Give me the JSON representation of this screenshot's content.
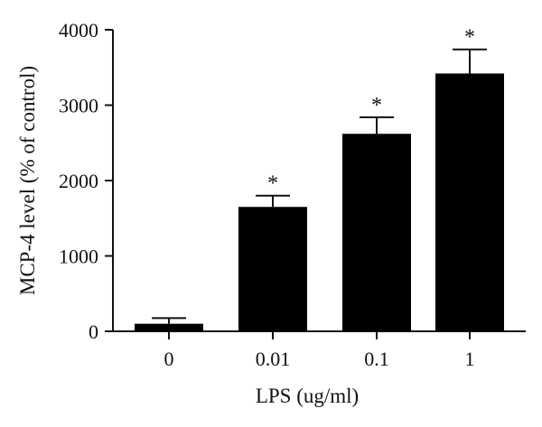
{
  "chart_data": {
    "type": "bar",
    "xlabel": "LPS (ug/ml)",
    "ylabel": "MCP-4 level (% of control)",
    "categories": [
      "0",
      "0.01",
      "0.1",
      "1"
    ],
    "values": [
      100,
      1650,
      2620,
      3420
    ],
    "error_plus": [
      75,
      150,
      220,
      320
    ],
    "significance": [
      "",
      "*",
      "*",
      "*"
    ],
    "ylim": [
      0,
      4000
    ],
    "yticks": [
      0,
      1000,
      2000,
      3000,
      4000
    ],
    "grid": false,
    "legend": "none",
    "bar_color": "#000000"
  }
}
